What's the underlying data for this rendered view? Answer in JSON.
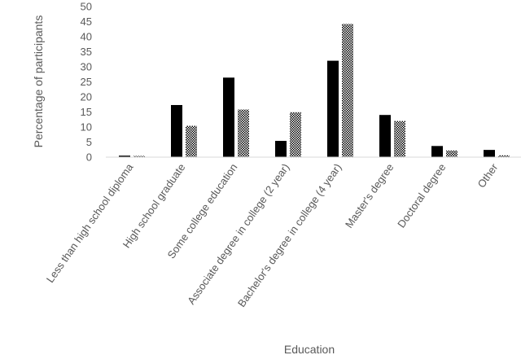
{
  "chart_data": {
    "type": "bar",
    "xlabel": "Education",
    "ylabel": "Percentage of participants",
    "ylim": [
      0,
      50
    ],
    "yticks": [
      "0",
      "5",
      "10",
      "15",
      "20",
      "25",
      "30",
      "35",
      "40",
      "45",
      "50"
    ],
    "grid": false,
    "legend": "none",
    "categories": [
      "Less than high school diploma",
      "High school graduate",
      "Some college education",
      "Associate degree in college (2 year)",
      "Bachelor's degree in college (4 year)",
      "Master's degree",
      "Doctoral degree",
      "Other"
    ],
    "series": [
      {
        "values": [
          0.5,
          17.3,
          26.4,
          5.4,
          32.0,
          14.0,
          3.7,
          2.4
        ],
        "color": "#000000",
        "fill": "solid"
      },
      {
        "values": [
          0.4,
          10.4,
          15.8,
          14.9,
          44.2,
          12.0,
          2.2,
          0.6
        ],
        "color": "#000000",
        "fill": "dotted"
      }
    ]
  }
}
